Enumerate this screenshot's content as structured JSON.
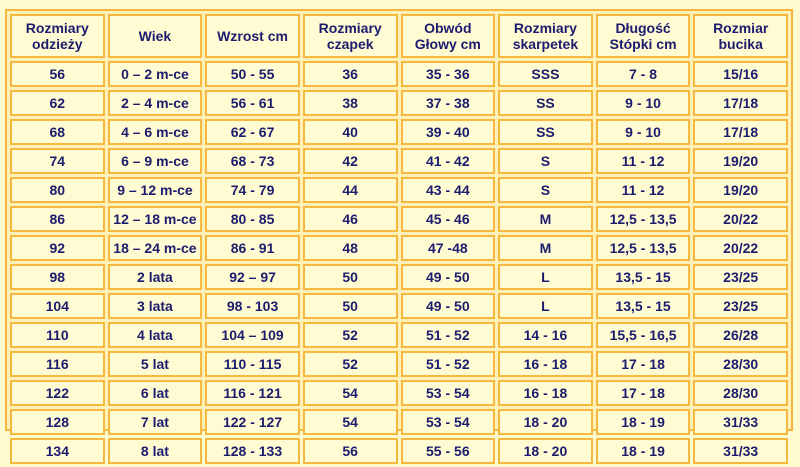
{
  "headers": [
    "Rozmiary\nodzieży",
    "Wiek",
    "Wzrost cm",
    "Rozmiary\nczapek",
    "Obwód\nGłowy cm",
    "Rozmiary\nskarpetek",
    "Długość\nStópki cm",
    "Rozmiar\nbucika"
  ],
  "rows": [
    [
      "56",
      "0 – 2 m-ce",
      "50 - 55",
      "36",
      "35 - 36",
      "SSS",
      "7 - 8",
      "15/16"
    ],
    [
      "62",
      "2 – 4 m-ce",
      "56 - 61",
      "38",
      "37 - 38",
      "SS",
      "9 - 10",
      "17/18"
    ],
    [
      "68",
      "4 – 6 m-ce",
      "62 - 67",
      "40",
      "39 - 40",
      "SS",
      "9 - 10",
      "17/18"
    ],
    [
      "74",
      "6 – 9 m-ce",
      "68 - 73",
      "42",
      "41 - 42",
      "S",
      "11 - 12",
      "19/20"
    ],
    [
      "80",
      "9 – 12 m-ce",
      "74 - 79",
      "44",
      "43 - 44",
      "S",
      "11 - 12",
      "19/20"
    ],
    [
      "86",
      "12 – 18 m-ce",
      "80 - 85",
      "46",
      "45 - 46",
      "M",
      "12,5 - 13,5",
      "20/22"
    ],
    [
      "92",
      "18 – 24 m-ce",
      "86 - 91",
      "48",
      "47 -48",
      "M",
      "12,5 - 13,5",
      "20/22"
    ],
    [
      "98",
      "2 lata",
      "92 – 97",
      "50",
      "49 - 50",
      "L",
      "13,5 - 15",
      "23/25"
    ],
    [
      "104",
      "3 lata",
      "98 - 103",
      "50",
      "49 - 50",
      "L",
      "13,5 - 15",
      "23/25"
    ],
    [
      "110",
      "4 lata",
      "104 – 109",
      "52",
      "51 - 52",
      "14 - 16",
      "15,5 - 16,5",
      "26/28"
    ],
    [
      "116",
      "5 lat",
      "110 - 115",
      "52",
      "51 - 52",
      "16 - 18",
      "17 - 18",
      "28/30"
    ],
    [
      "122",
      "6 lat",
      "116 - 121",
      "54",
      "53 - 54",
      "16 - 18",
      "17 - 18",
      "28/30"
    ],
    [
      "128",
      "7 lat",
      "122 - 127",
      "54",
      "53 - 54",
      "18 - 20",
      "18 - 19",
      "31/33"
    ],
    [
      "134",
      "8 lat",
      "128 - 133",
      "56",
      "55 - 56",
      "18 - 20",
      "18 - 19",
      "31/33"
    ]
  ],
  "colors": {
    "background": "#FFFBD0",
    "border": "#F6B83E",
    "text": "#1C1C6E"
  }
}
